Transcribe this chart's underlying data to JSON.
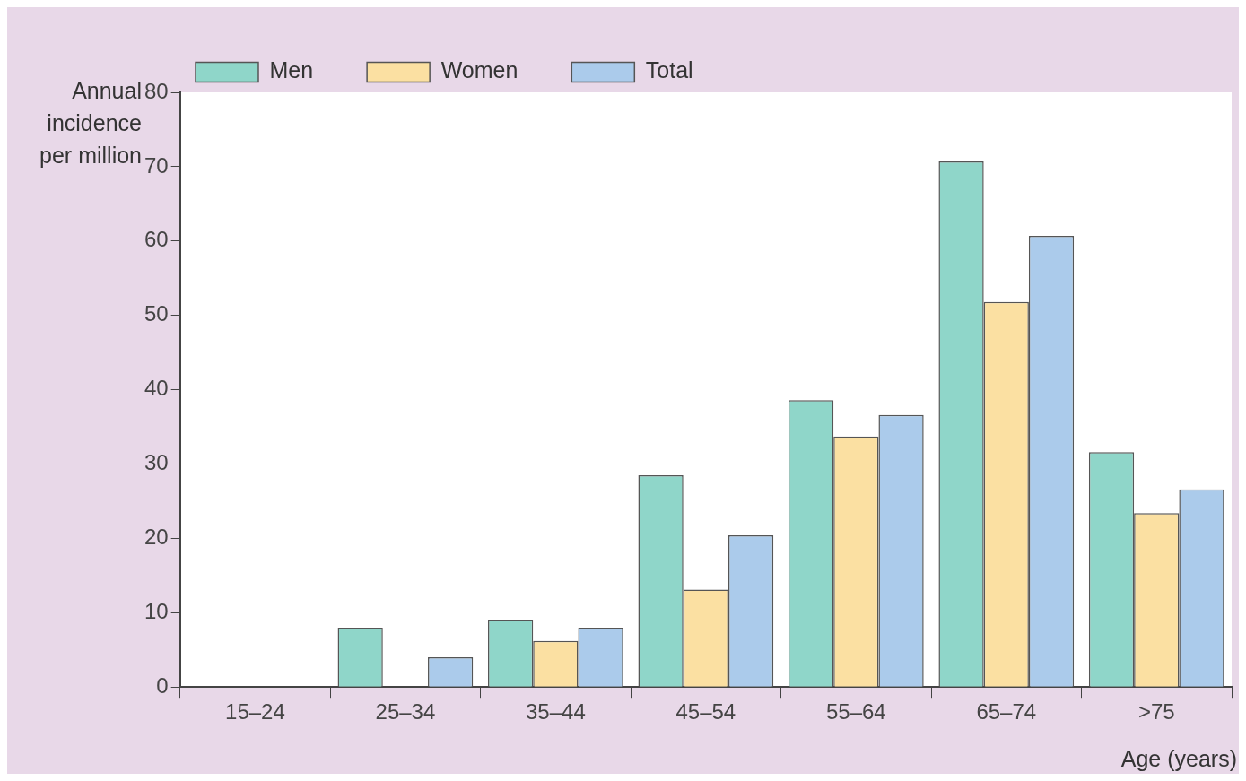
{
  "chart_data": {
    "type": "bar",
    "xlabel": "Age (years)",
    "ylabel": "Annual incidence per million",
    "categories": [
      "15–24",
      "25–34",
      "35–44",
      "45–54",
      "55–64",
      "65–74",
      ">75"
    ],
    "series": [
      {
        "name": "Men",
        "color": "#8fd6c9",
        "values": [
          0,
          8,
          9,
          28.5,
          38.6,
          70.7,
          31.6
        ]
      },
      {
        "name": "Women",
        "color": "#fbe0a2",
        "values": [
          0,
          0,
          6.2,
          13.1,
          33.7,
          51.8,
          23.4
        ]
      },
      {
        "name": "Total",
        "color": "#abcbeb",
        "values": [
          0,
          4,
          8,
          20.4,
          36.6,
          60.7,
          26.6
        ]
      }
    ],
    "ylim": [
      0,
      80
    ],
    "yticks": [
      0,
      10,
      20,
      30,
      40,
      50,
      60,
      70,
      80
    ],
    "grid": false,
    "legend": "top left"
  }
}
